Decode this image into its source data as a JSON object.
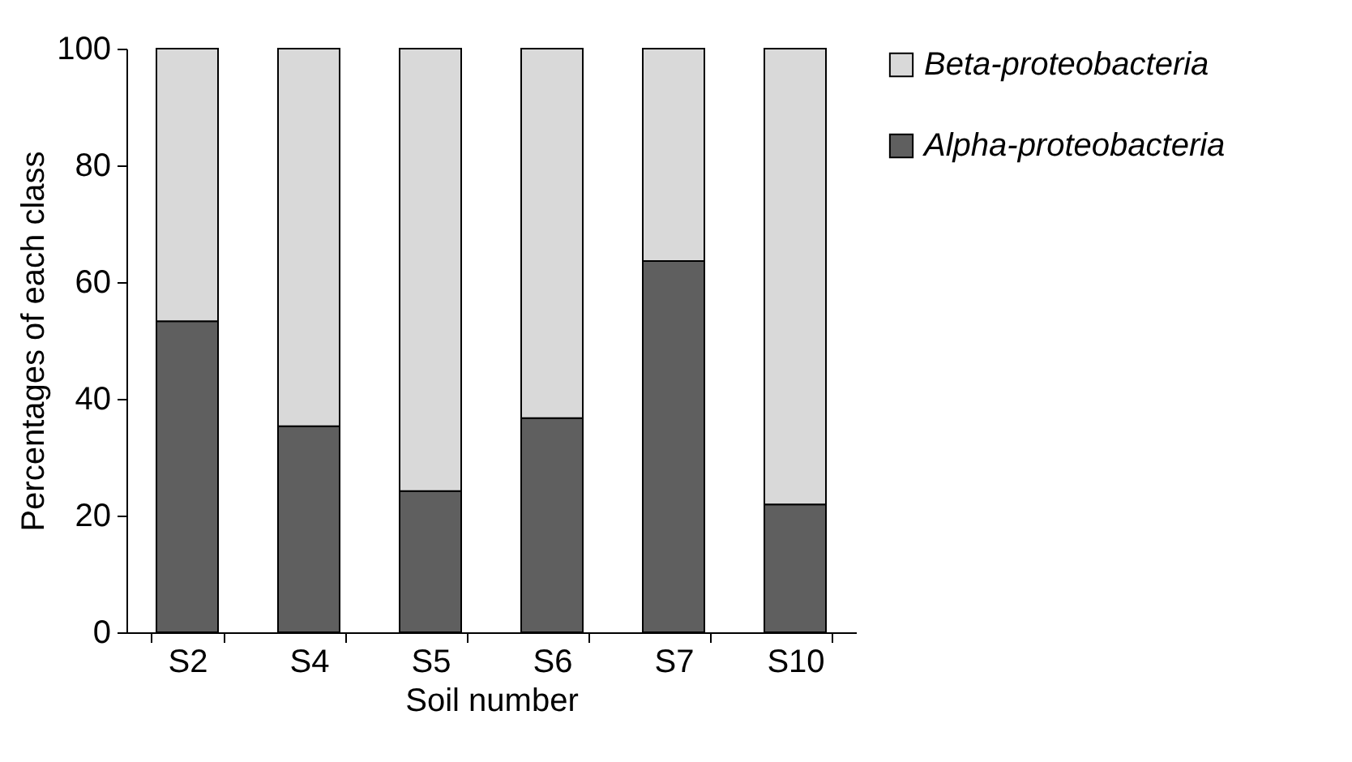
{
  "chart_data": {
    "type": "bar",
    "stacked": true,
    "xlabel": "Soil number",
    "ylabel": "Percentages of each class",
    "categories": [
      "S2",
      "S4",
      "S5",
      "S6",
      "S7",
      "S10"
    ],
    "series": [
      {
        "name": "Alpha-proteobacteria",
        "color": "#5f5f5f",
        "values": [
          53.3,
          35.3,
          24.2,
          36.7,
          63.6,
          21.9
        ]
      },
      {
        "name": "Beta-proteobacteria",
        "color": "#d9d9d9",
        "values": [
          46.7,
          64.7,
          75.8,
          63.3,
          36.4,
          78.1
        ]
      }
    ],
    "ylim": [
      0,
      100
    ],
    "yticks": [
      0,
      20,
      40,
      60,
      80,
      100
    ],
    "grid": false,
    "legend": "top right"
  }
}
